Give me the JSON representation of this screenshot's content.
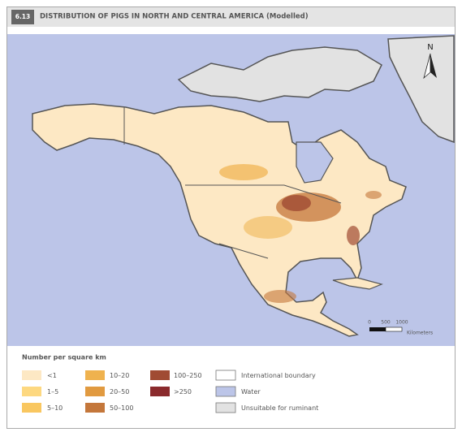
{
  "header": {
    "number": "6.13",
    "title": "DISTRIBUTION OF PIGS IN NORTH AND CENTRAL AMERICA (Modelled)"
  },
  "map": {
    "north": "N",
    "scale": {
      "ticks": [
        "0",
        "500",
        "1000"
      ],
      "unit": "Kilometers"
    }
  },
  "legend": {
    "title": "Number per square km",
    "items": [
      {
        "label": "<1",
        "color": "#fde8c4"
      },
      {
        "label": "1–5",
        "color": "#fdd880"
      },
      {
        "label": "5–10",
        "color": "#f9c760"
      },
      {
        "label": "10–20",
        "color": "#efb24e"
      },
      {
        "label": "20–50",
        "color": "#e19a40"
      },
      {
        "label": "50–100",
        "color": "#c4773b"
      },
      {
        "label": "100–250",
        "color": "#a04b33"
      },
      {
        "label": ">250",
        "color": "#8a2a2c"
      },
      {
        "label": "International boundary",
        "color": "#ffffff"
      },
      {
        "label": "Water",
        "color": "#bcc5e8"
      },
      {
        "label": "Unsuitable for ruminant",
        "color": "#e2e2e2"
      }
    ]
  }
}
